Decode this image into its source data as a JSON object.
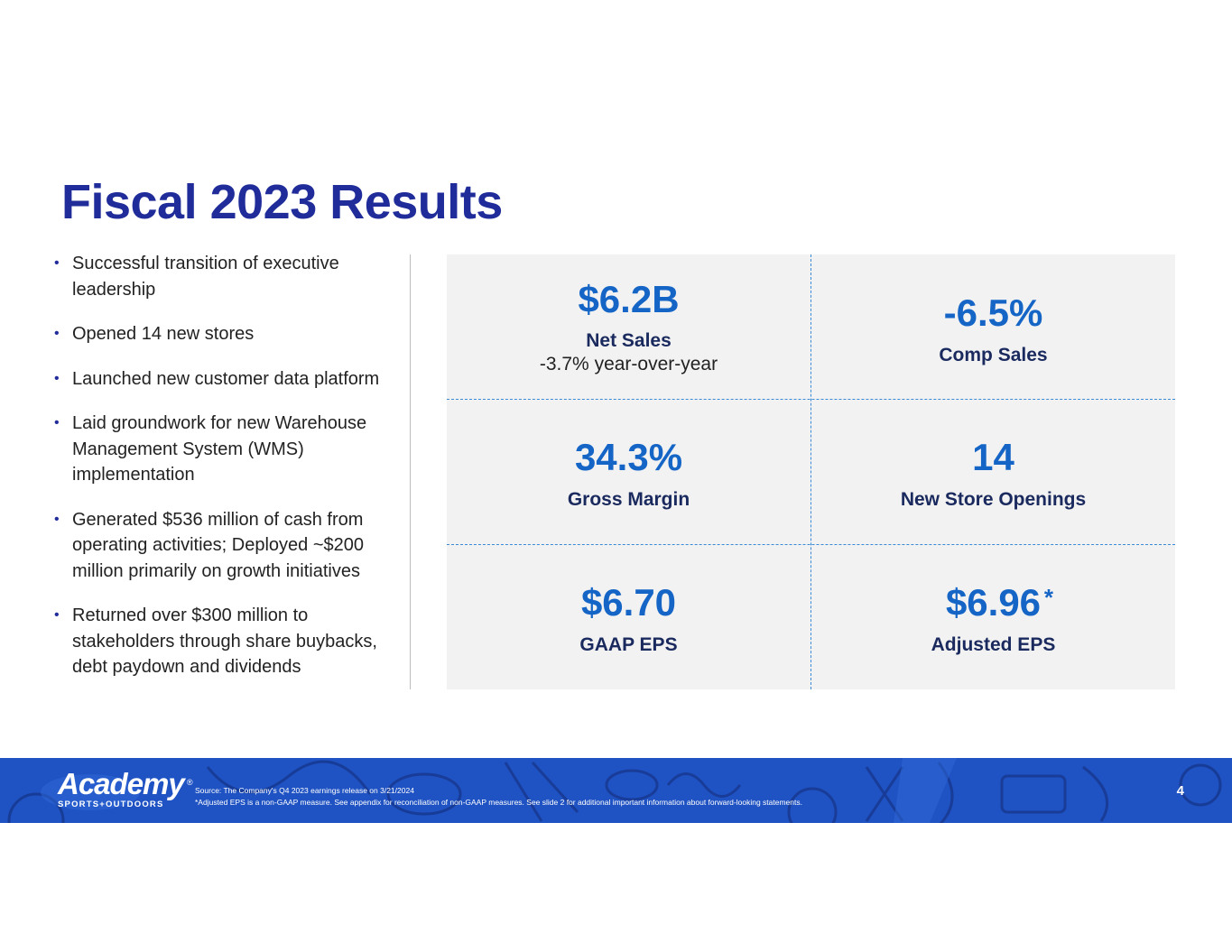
{
  "title": "Fiscal 2023 Results",
  "bullets": [
    "Successful transition of executive leadership",
    "Opened 14 new stores",
    "Launched new customer data platform",
    "Laid groundwork for new Warehouse Management System (WMS) implementation",
    "Generated $536 million of cash from operating activities; Deployed ~$200 million primarily on growth initiatives",
    "Returned over $300 million to stakeholders through share buybacks, debt paydown and dividends"
  ],
  "bullet_glyph": "•",
  "metrics": {
    "net_sales": {
      "value": "$6.2B",
      "label": "Net Sales",
      "sub": "-3.7% year-over-year"
    },
    "comp_sales": {
      "value": "-6.5%",
      "label": "Comp Sales"
    },
    "gross_margin": {
      "value": "34.3%",
      "label": "Gross Margin"
    },
    "new_stores": {
      "value": "14",
      "label": "New Store Openings"
    },
    "gaap_eps": {
      "value": "$6.70",
      "label": "GAAP EPS"
    },
    "adjusted_eps": {
      "value": "$6.96",
      "marker": "*",
      "label": "Adjusted EPS"
    }
  },
  "footer": {
    "logo_word": "Academy",
    "logo_reg": "®",
    "logo_tagline": "SPORTS+OUTDOORS",
    "source_note": "Source: The Company's Q4 2023 earnings release on 3/21/2024",
    "adjusted_note": "*Adjusted EPS is a non-GAAP measure. See appendix for reconciliation of non-GAAP measures. See slide 2 for additional important information about forward-looking statements.",
    "page_number": "4"
  },
  "colors": {
    "title": "#1f2c99",
    "metric": "#1565c6",
    "label": "#1a2a5e",
    "grid_bg": "#f2f2f2",
    "divider": "#3a8ad6",
    "footer_bg": "#1f52c2"
  }
}
